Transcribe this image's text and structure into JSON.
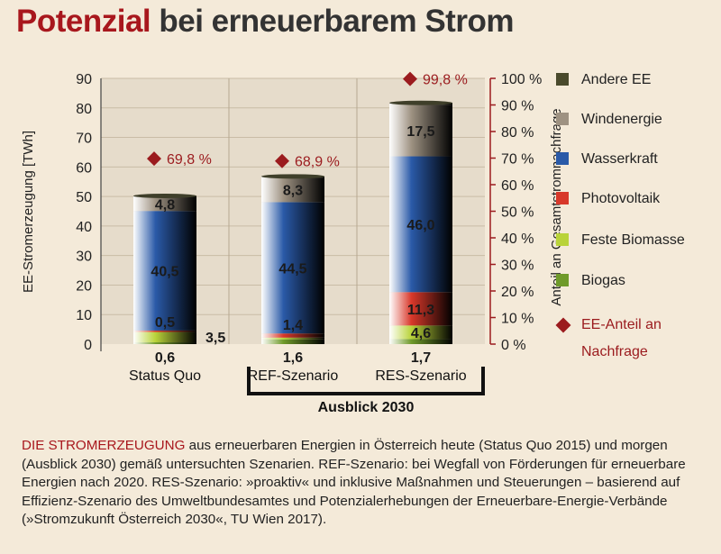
{
  "title_accent": "Potenzial",
  "title_rest": " bei erneuerbarem Strom",
  "chart_data": {
    "type": "bar",
    "stacked": true,
    "categories": [
      "Status Quo",
      "REF-Szenario",
      "RES-Szenario"
    ],
    "group_label": "Ausblick 2030",
    "ylabel_left": "EE-Stromerzeugung [TWh]",
    "ylabel_right": "Anteil an Gesamtstromnachfrage",
    "ylim_left": [
      0,
      90
    ],
    "ylim_right": [
      0,
      100
    ],
    "left_ticks": [
      "0",
      "10",
      "20",
      "30",
      "40",
      "50",
      "60",
      "70",
      "80",
      "90"
    ],
    "right_ticks": [
      "0 %",
      "10 %",
      "20 %",
      "30 %",
      "40 %",
      "50 %",
      "60 %",
      "70 %",
      "80 %",
      "90 %",
      "100 %"
    ],
    "series": [
      {
        "name": "Biogas",
        "color": "#6f9a2a",
        "values": [
          0.6,
          1.6,
          1.7
        ],
        "labels": [
          "0,6",
          "1,6",
          "1,7"
        ]
      },
      {
        "name": "Feste Biomasse",
        "color": "#b9d33a",
        "values": [
          3.5,
          0.6,
          4.6
        ],
        "labels": [
          "3,5",
          "",
          "4,6"
        ]
      },
      {
        "name": "Photovoltaik",
        "color": "#d8382a",
        "values": [
          0.5,
          1.4,
          11.3
        ],
        "labels": [
          "0,5",
          "1,4",
          "11,3"
        ]
      },
      {
        "name": "Wasserkraft",
        "color": "#2a5aa8",
        "values": [
          40.5,
          44.5,
          46.0
        ],
        "labels": [
          "40,5",
          "44,5",
          "46,0"
        ]
      },
      {
        "name": "Windenergie",
        "color": "#9e9282",
        "values": [
          4.8,
          8.3,
          17.5
        ],
        "labels": [
          "4,8",
          "8,3",
          "17,5"
        ]
      },
      {
        "name": "Andere EE",
        "color": "#4a4a2c",
        "values": [
          0.3,
          0.4,
          0.6
        ],
        "labels": [
          "",
          "",
          ""
        ]
      }
    ],
    "share": {
      "name": "EE-Anteil an Nachfrage",
      "color": "#9b1b1e",
      "values": [
        69.8,
        68.9,
        99.8
      ],
      "labels": [
        "69,8 %",
        "68,9 %",
        "99,8 %"
      ]
    }
  },
  "legend": [
    {
      "label": "Andere EE",
      "color": "#4a4a2c"
    },
    {
      "label": "Windenergie",
      "color": "#9e9282"
    },
    {
      "label": "Wasserkraft",
      "color": "#2a5aa8"
    },
    {
      "label": "Photovoltaik",
      "color": "#d8382a"
    },
    {
      "label": "Feste Biomasse",
      "color": "#b9d33a"
    },
    {
      "label": "Biogas",
      "color": "#6f9a2a"
    }
  ],
  "legend_share_line1": "EE-Anteil an",
  "legend_share_line2": "Nachfrage",
  "caption_lead": "DIE STROMERZEUGUNG",
  "caption_rest": " aus erneuerbaren Energien in Österreich heute (Status Quo 2015) und morgen (Ausblick 2030) gemäß untersuchten Szenarien. REF-Szenario: bei Wegfall von Förderungen für erneuerbare Energien nach 2020. RES-Szenario: »proaktiv« und inklusive Maßnahmen und Steuerungen – basierend auf Effizienz-Szenario des Umweltbundesamtes und Potenzialerhebungen der Erneuerbare-Energie-Verbände (»Stromzukunft Österreich 2030«, TU Wien 2017)."
}
